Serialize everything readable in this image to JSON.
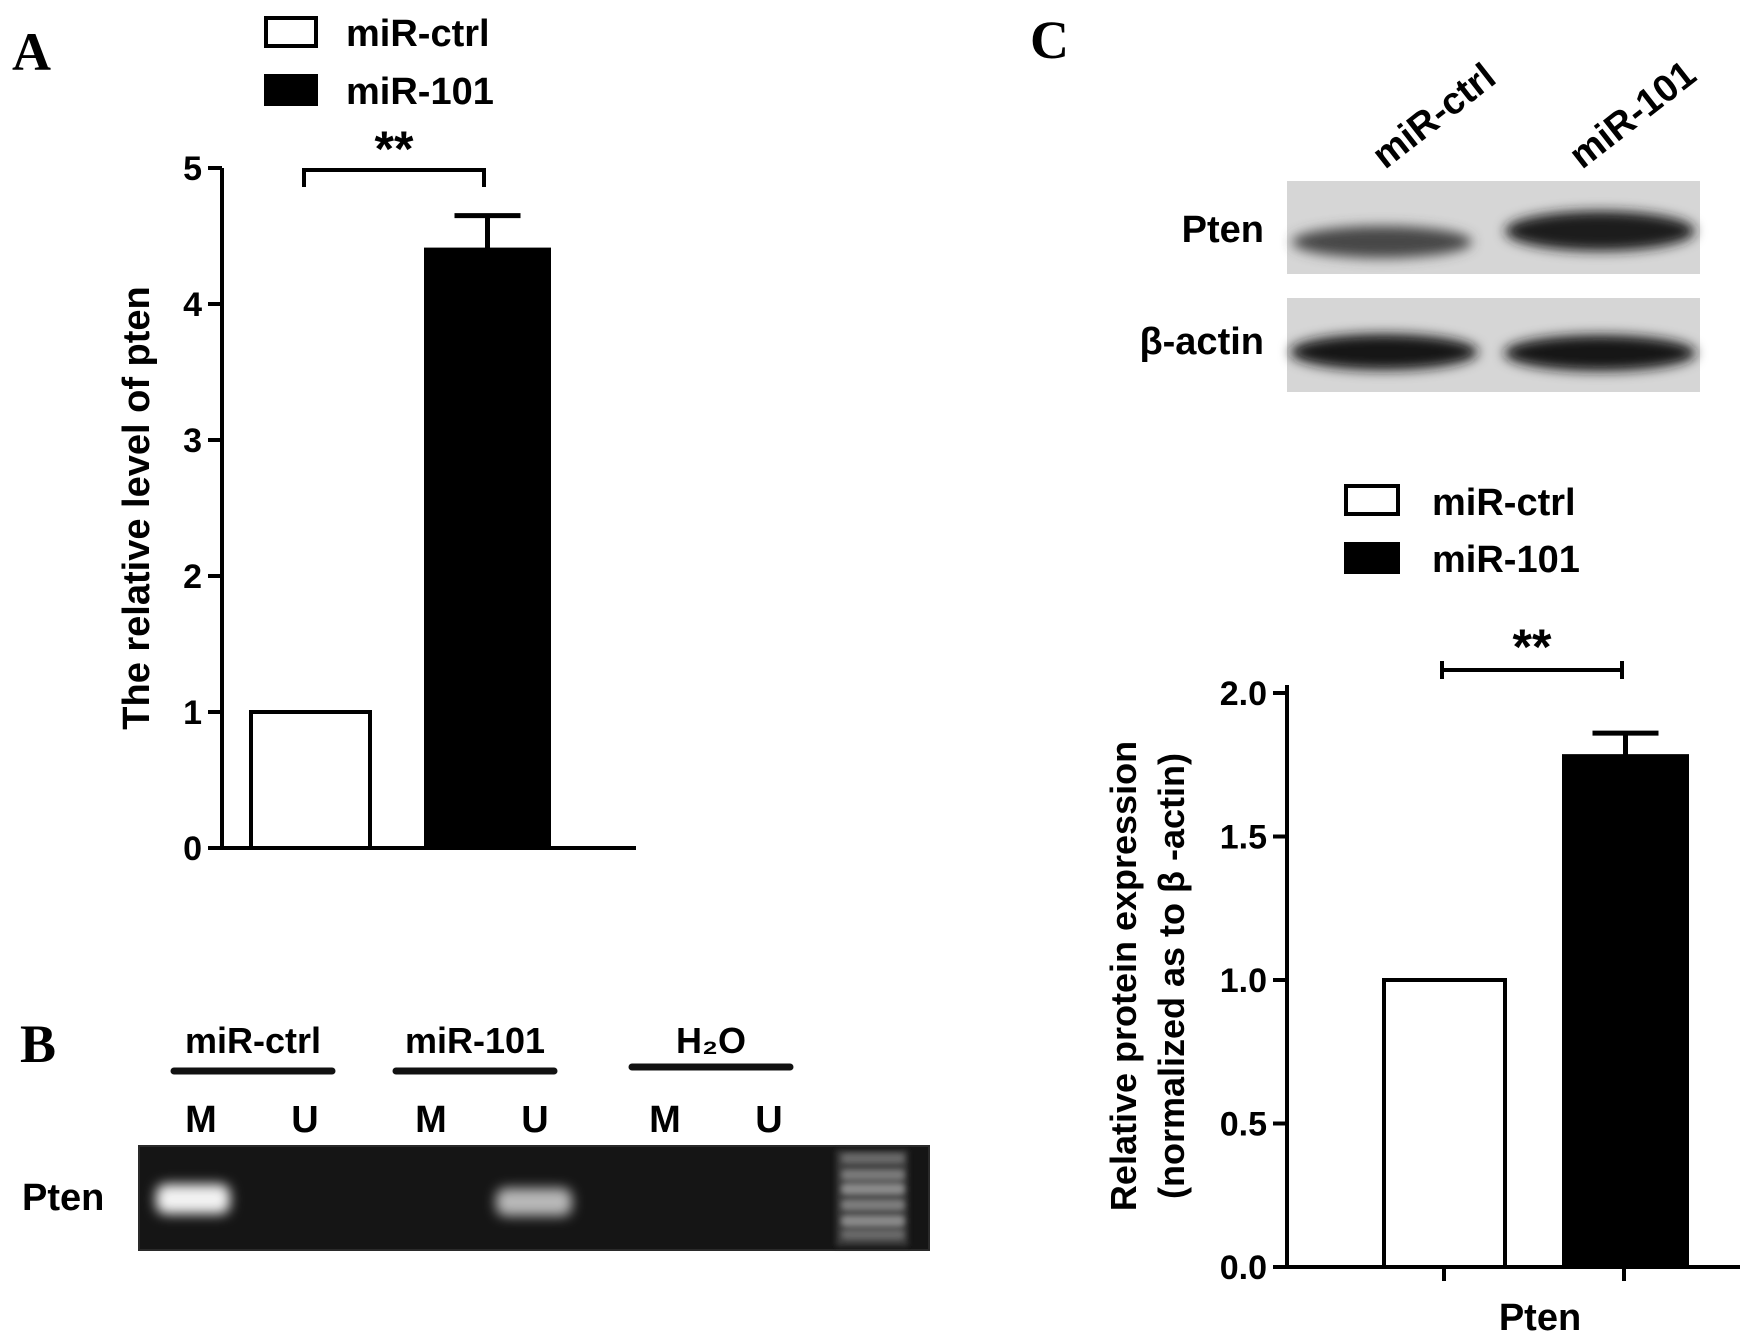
{
  "panels": {
    "a": {
      "letter": "A",
      "legend": [
        {
          "label": "miR-ctrl",
          "fill": "#ffffff"
        },
        {
          "label": "miR-101",
          "fill": "#000000"
        }
      ],
      "significance": "**"
    },
    "b": {
      "letter": "B",
      "groups": [
        "miR-ctrl",
        "miR-101",
        "H₂O"
      ],
      "lanes": [
        "M",
        "U",
        "M",
        "U",
        "M",
        "U"
      ],
      "row_label": "Pten",
      "bands_visible": [
        true,
        false,
        false,
        true,
        false,
        false
      ]
    },
    "c": {
      "letter": "C",
      "blot_lanes": [
        "miR-ctrl",
        "miR-101"
      ],
      "blot_rows": [
        "Pten",
        "β-actin"
      ],
      "legend": [
        {
          "label": "miR-ctrl",
          "fill": "#ffffff"
        },
        {
          "label": "miR-101",
          "fill": "#000000"
        }
      ],
      "significance": "**"
    }
  },
  "chart_data": [
    {
      "type": "bar",
      "categories": [
        "miR-ctrl",
        "miR-101"
      ],
      "values": [
        1.0,
        4.4
      ],
      "errors": [
        0,
        0.25
      ],
      "colors": [
        "#ffffff",
        "#000000"
      ],
      "ylabel": "The relative level of pten",
      "ylim": [
        0,
        5
      ],
      "yticks": [
        "0",
        "1",
        "2",
        "3",
        "4",
        "5"
      ],
      "grid": false,
      "legend": "top-left"
    },
    {
      "type": "bar",
      "categories": [
        "miR-ctrl",
        "miR-101"
      ],
      "values": [
        1.0,
        1.78
      ],
      "errors": [
        0,
        0.08
      ],
      "colors": [
        "#ffffff",
        "#000000"
      ],
      "xlabel": "Pten",
      "ylabel": "Relative protein expression",
      "ylabel2": "(normalized as to β -actin)",
      "ylim": [
        0,
        2.0
      ],
      "yticks": [
        "0.0",
        "0.5",
        "1.0",
        "1.5",
        "2.0"
      ],
      "grid": false,
      "legend": "top"
    }
  ]
}
